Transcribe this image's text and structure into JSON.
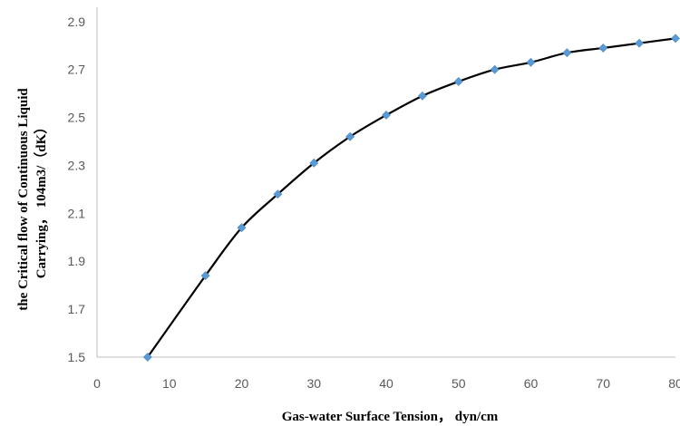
{
  "chart_data": {
    "type": "line",
    "title": "",
    "xlabel": "Gas-water Surface Tension， dyn/cm",
    "ylabel_lines": [
      "the Critical flow of Continuous  Liquid",
      "Carrying， 104m3/（dK）"
    ],
    "xlim": [
      0,
      80
    ],
    "ylim": [
      1.5,
      2.96
    ],
    "x_ticks": [
      0,
      10,
      20,
      30,
      40,
      50,
      60,
      70,
      80
    ],
    "x_tick_labels": [
      "0",
      "10",
      "20",
      "30",
      "40",
      "50",
      "60",
      "70",
      "80"
    ],
    "y_ticks": [
      1.5,
      1.7,
      1.9,
      2.1,
      2.3,
      2.5,
      2.7,
      2.9
    ],
    "y_tick_labels": [
      "1.5",
      "1.7",
      "1.9",
      "2.1",
      "2.3",
      "2.5",
      "2.7",
      "2.9"
    ],
    "grid": false,
    "legend": "none",
    "line_color": "#000000",
    "marker": "diamond",
    "marker_color": "#5b9bd5",
    "series": [
      {
        "x": [
          7,
          15,
          20,
          25,
          30,
          35,
          40,
          45,
          50,
          55,
          60,
          65,
          70,
          75,
          80
        ],
        "values": [
          1.5,
          1.84,
          2.04,
          2.18,
          2.31,
          2.42,
          2.51,
          2.59,
          2.65,
          2.7,
          2.73,
          2.77,
          2.79,
          2.81,
          2.83
        ]
      }
    ]
  }
}
